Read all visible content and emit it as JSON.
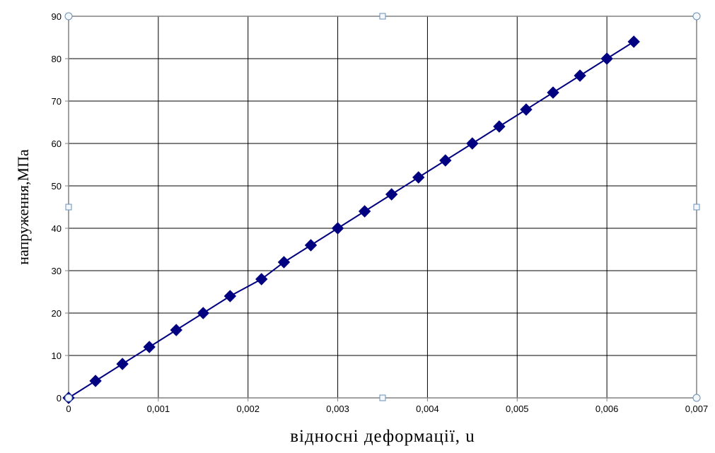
{
  "chart_data": {
    "type": "line",
    "title": "",
    "xlabel": "відносні деформації, u",
    "ylabel": "напруження,МПа",
    "xlim": [
      0,
      0.007
    ],
    "ylim": [
      0,
      90
    ],
    "x_ticks": [
      0,
      0.001,
      0.002,
      0.003,
      0.004,
      0.005,
      0.006,
      0.007
    ],
    "x_tick_labels": [
      "0",
      "0,001",
      "0,002",
      "0,003",
      "0,004",
      "0,005",
      "0,006",
      "0,007"
    ],
    "y_ticks": [
      0,
      10,
      20,
      30,
      40,
      50,
      60,
      70,
      80,
      90
    ],
    "y_tick_labels": [
      "0",
      "10",
      "20",
      "30",
      "40",
      "50",
      "60",
      "70",
      "80",
      "90"
    ],
    "grid": true,
    "legend": "none",
    "series": [
      {
        "marker": "diamond",
        "color": "#000080",
        "points": [
          [
            0,
            0
          ],
          [
            0.0003,
            4
          ],
          [
            0.0006,
            8
          ],
          [
            0.0009,
            12
          ],
          [
            0.0012,
            16
          ],
          [
            0.0015,
            20
          ],
          [
            0.0018,
            24
          ],
          [
            0.00215,
            28
          ],
          [
            0.0024,
            32
          ],
          [
            0.0027,
            36
          ],
          [
            0.003,
            40
          ],
          [
            0.0033,
            44
          ],
          [
            0.0036,
            48
          ],
          [
            0.0039,
            52
          ],
          [
            0.0042,
            56
          ],
          [
            0.0045,
            60
          ],
          [
            0.0048,
            64
          ],
          [
            0.0051,
            68
          ],
          [
            0.0054,
            72
          ],
          [
            0.0057,
            76
          ],
          [
            0.006,
            80
          ],
          [
            0.0063,
            84
          ]
        ]
      }
    ]
  }
}
